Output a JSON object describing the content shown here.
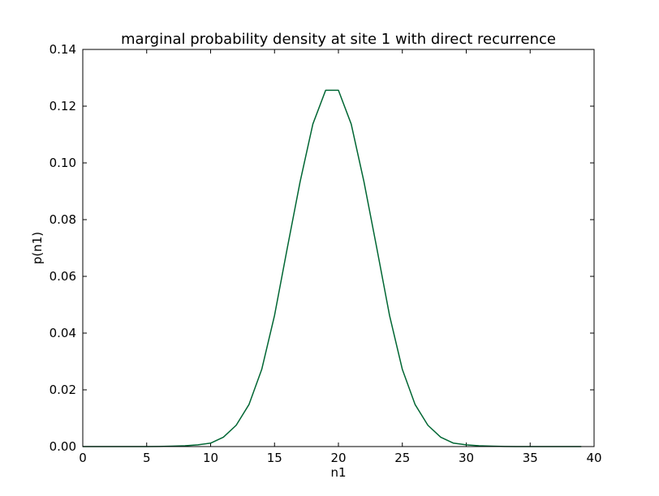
{
  "chart_data": {
    "type": "line",
    "title": "marginal probability density at site 1 with direct recurrence",
    "xlabel": "n1",
    "ylabel": "p(n1)",
    "xlim": [
      0,
      40
    ],
    "ylim": [
      0,
      0.14
    ],
    "x_ticks": [
      "0",
      "5",
      "10",
      "15",
      "20",
      "25",
      "30",
      "35",
      "40"
    ],
    "y_ticks": [
      "0.00",
      "0.02",
      "0.04",
      "0.06",
      "0.08",
      "0.10",
      "0.12",
      "0.14"
    ],
    "grid": false,
    "series": [
      {
        "color": "#006633",
        "x": [
          0,
          1,
          2,
          3,
          4,
          5,
          6,
          7,
          8,
          9,
          10,
          11,
          12,
          13,
          14,
          15,
          16,
          17,
          18,
          19,
          20,
          21,
          22,
          23,
          24,
          25,
          26,
          27,
          28,
          29,
          30,
          31,
          32,
          33,
          34,
          35,
          36,
          37,
          38,
          39
        ],
        "y": [
          0,
          0,
          0,
          0,
          0,
          1e-05,
          5e-05,
          0.00015,
          0.0003,
          0.0006,
          0.0012,
          0.0033,
          0.0075,
          0.0148,
          0.0272,
          0.0462,
          0.07,
          0.0933,
          0.1137,
          0.1256,
          0.1256,
          0.1137,
          0.0933,
          0.07,
          0.0462,
          0.0272,
          0.0148,
          0.0075,
          0.0033,
          0.0012,
          0.0006,
          0.0003,
          0.00015,
          5e-05,
          1e-05,
          0,
          0,
          0,
          0,
          0
        ]
      }
    ]
  }
}
